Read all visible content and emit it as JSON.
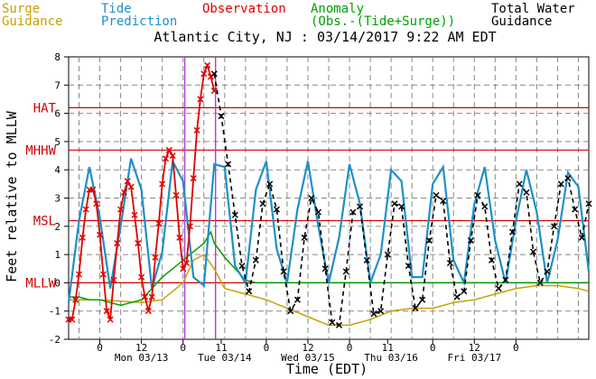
{
  "header": {
    "title": "Atlantic City, NJ : 03/14/2017 9:22 AM EDT",
    "legend": [
      {
        "lines": [
          "Surge",
          "Guidance"
        ],
        "color": "#c8a000"
      },
      {
        "lines": [
          "Tide",
          "Prediction"
        ],
        "color": "#1e90c8"
      },
      {
        "lines": [
          "Observation"
        ],
        "color": "#e00000"
      },
      {
        "lines": [
          "Anomaly",
          "(Obs.-(Tide+Surge))"
        ],
        "color": "#00a000"
      },
      {
        "lines": [
          "Total Water",
          "Guidance"
        ],
        "color": "#000000"
      }
    ]
  },
  "chart_data": {
    "type": "line",
    "ylabel": "Feet relative to MLLW",
    "xlabel": "Time (EDT)",
    "ylim": [
      -2,
      8
    ],
    "xlim_hours": [
      -9,
      141
    ],
    "y_ticks": [
      -2,
      -1,
      0,
      1,
      2,
      3,
      4,
      5,
      6,
      7,
      8
    ],
    "x_hour_ticks": [
      "0",
      "12",
      "0",
      "11",
      "0",
      "12",
      "0",
      "11",
      "0",
      "12",
      "0"
    ],
    "x_day_labels": [
      "Mon 03/13",
      "Tue 03/14",
      "Wed 03/15",
      "Thu 03/16",
      "Fri 03/17"
    ],
    "datum_lines": [
      {
        "label": "HAT",
        "y": 6.2
      },
      {
        "label": "MHHW",
        "y": 4.7
      },
      {
        "label": "MSL",
        "y": 2.2
      },
      {
        "label": "MLLW",
        "y": 0
      }
    ],
    "now_lines": [
      "03/14 00:30",
      "03/14 09:22"
    ],
    "series": [
      {
        "name": "Tide Prediction",
        "color": "#1e90c8",
        "x": [
          -9,
          -6,
          -3,
          0,
          3,
          6,
          9,
          12,
          15,
          18,
          21,
          24,
          27,
          30,
          33,
          36,
          39,
          42,
          45,
          48,
          51,
          54,
          57,
          60,
          63,
          66,
          69,
          72,
          75,
          78,
          81,
          84,
          87,
          90,
          93,
          96,
          99,
          102,
          105,
          108,
          111,
          114,
          117,
          120,
          123,
          126,
          129,
          132,
          135,
          138,
          141
        ],
        "y": [
          -0.7,
          2.2,
          4.1,
          2.3,
          -0.2,
          2.0,
          4.4,
          3.3,
          -0.2,
          1.1,
          4.3,
          3.6,
          0.2,
          -0.1,
          4.2,
          4.1,
          0.6,
          0.0,
          3.3,
          4.3,
          1.2,
          0.0,
          2.6,
          4.3,
          2.0,
          0.0,
          1.6,
          4.2,
          2.8,
          0.0,
          1.0,
          4.0,
          3.6,
          0.2,
          0.2,
          3.5,
          4.1,
          0.8,
          0.0,
          2.8,
          4.1,
          1.5,
          0.0,
          2.2,
          4.0,
          2.5,
          0.0,
          1.5,
          3.9,
          3.4,
          0.4
        ]
      },
      {
        "name": "Observation",
        "color": "#e00000",
        "x": [
          -9,
          -8,
          -7,
          -6,
          -5,
          -4,
          -3,
          -2,
          -1,
          0,
          1,
          2,
          3,
          4,
          5,
          6,
          7,
          8,
          9,
          10,
          11,
          12,
          13,
          14,
          15,
          16,
          17,
          18,
          19,
          20,
          21,
          22,
          23,
          24,
          25,
          26,
          27,
          28,
          29,
          30,
          31,
          32,
          33
        ],
        "y": [
          -1.3,
          -1.3,
          -0.6,
          0.3,
          1.6,
          2.6,
          3.3,
          3.3,
          2.8,
          1.7,
          0.3,
          -1.0,
          -1.3,
          0.1,
          1.4,
          2.6,
          3.2,
          3.6,
          3.4,
          2.4,
          1.4,
          0.2,
          -0.5,
          -1.0,
          -0.5,
          0.9,
          2.1,
          3.5,
          4.4,
          4.7,
          4.5,
          3.1,
          1.6,
          0.5,
          0.7,
          2.0,
          3.7,
          5.4,
          6.5,
          7.4,
          7.7,
          7.3,
          6.8
        ]
      },
      {
        "name": "Anomaly",
        "color": "#00a000",
        "x": [
          -9,
          -6,
          -3,
          0,
          3,
          6,
          9,
          12,
          15,
          18,
          21,
          24,
          26,
          28,
          30,
          32,
          33,
          36,
          39,
          42,
          45,
          48,
          60,
          90,
          141
        ],
        "y": [
          -0.5,
          -0.5,
          -0.6,
          -0.6,
          -0.7,
          -0.8,
          -0.7,
          -0.6,
          -0.2,
          0.2,
          0.5,
          0.8,
          1.0,
          1.2,
          1.4,
          1.8,
          1.4,
          0.9,
          0.5,
          0.1,
          0.0,
          0.0,
          0.0,
          0.0,
          0.0
        ]
      },
      {
        "name": "Surge Guidance",
        "color": "#c8a000",
        "x": [
          -9,
          0,
          12,
          18,
          24,
          27,
          30,
          33,
          36,
          42,
          48,
          54,
          60,
          66,
          72,
          78,
          84,
          90,
          96,
          102,
          108,
          114,
          120,
          126,
          132,
          138,
          141
        ],
        "y": [
          -0.6,
          -0.6,
          -0.7,
          -0.6,
          0.0,
          0.8,
          1.0,
          0.5,
          -0.2,
          -0.4,
          -0.6,
          -0.9,
          -1.2,
          -1.5,
          -1.5,
          -1.3,
          -1.0,
          -0.9,
          -0.9,
          -0.7,
          -0.6,
          -0.4,
          -0.2,
          -0.1,
          -0.1,
          -0.2,
          -0.3
        ]
      },
      {
        "name": "Total Water Guidance",
        "color": "#000000",
        "x": [
          33,
          35,
          37,
          39,
          41,
          43,
          45,
          47,
          49,
          51,
          53,
          55,
          57,
          59,
          61,
          63,
          65,
          67,
          69,
          71,
          73,
          75,
          77,
          79,
          81,
          83,
          85,
          87,
          89,
          91,
          93,
          95,
          97,
          99,
          101,
          103,
          105,
          107,
          109,
          111,
          113,
          115,
          117,
          119,
          121,
          123,
          125,
          127,
          129,
          131,
          133,
          135,
          137,
          139,
          141
        ],
        "y": [
          7.4,
          5.9,
          4.2,
          2.4,
          0.6,
          -0.3,
          0.8,
          2.8,
          3.5,
          2.6,
          0.4,
          -1.0,
          -0.6,
          1.6,
          3.0,
          2.5,
          0.5,
          -1.4,
          -1.5,
          0.4,
          2.5,
          2.7,
          0.8,
          -1.1,
          -1.0,
          1.0,
          2.8,
          2.7,
          0.6,
          -0.9,
          -0.6,
          1.5,
          3.1,
          2.9,
          0.7,
          -0.5,
          -0.3,
          1.5,
          3.1,
          2.7,
          0.8,
          -0.2,
          0.1,
          1.8,
          3.5,
          3.2,
          1.1,
          0.0,
          0.4,
          2.0,
          3.5,
          3.7,
          2.6,
          1.6,
          2.8
        ]
      }
    ]
  }
}
